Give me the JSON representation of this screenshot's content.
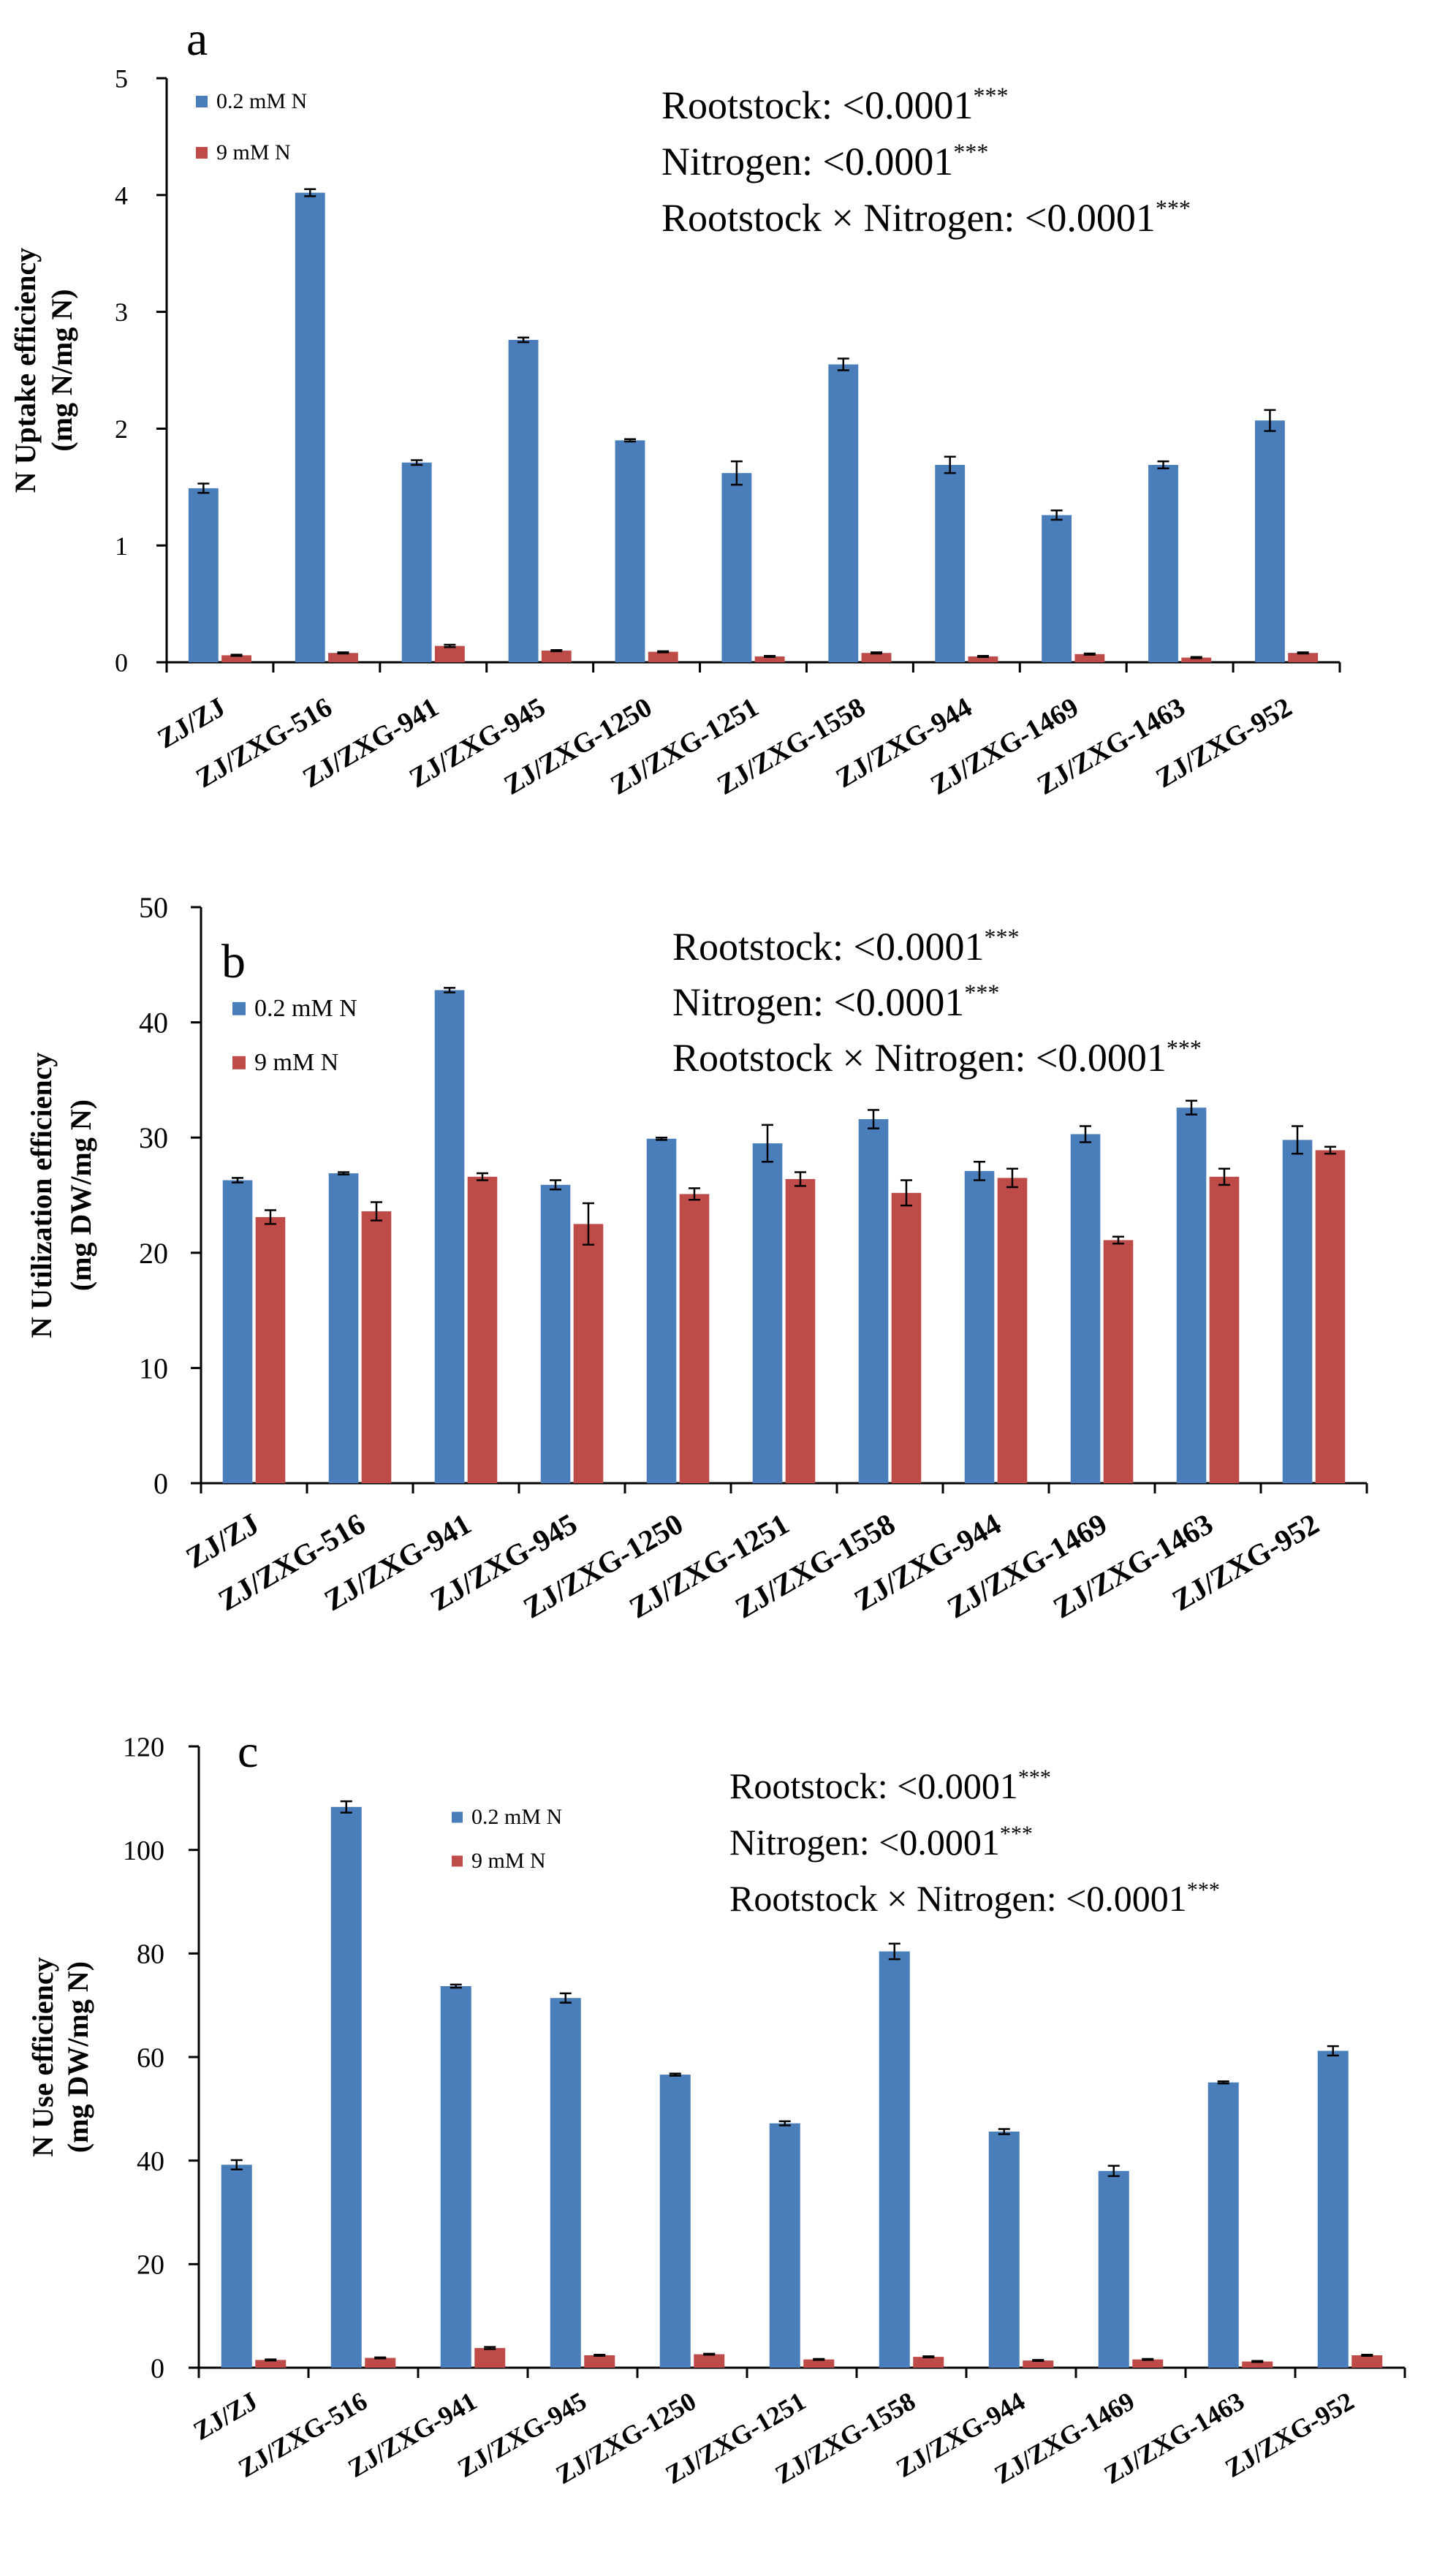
{
  "colors": {
    "series1": "#4A7EBB",
    "series2": "#BE4B48",
    "axis": "#000000"
  },
  "chart_data": [
    {
      "type": "bar",
      "panel_label": "a",
      "ylabel_line1": "N Uptake efficiency",
      "ylabel_line2": "(mg N/mg N)",
      "ylim": [
        0,
        5
      ],
      "yticks": [
        0,
        1,
        2,
        3,
        4,
        5
      ],
      "categories": [
        "ZJ/ZJ",
        "ZJ/ZXG-516",
        "ZJ/ZXG-941",
        "ZJ/ZXG-945",
        "ZJ/ZXG-1250",
        "ZJ/ZXG-1251",
        "ZJ/ZXG-1558",
        "ZJ/ZXG-944",
        "ZJ/ZXG-1469",
        "ZJ/ZXG-1463",
        "ZJ/ZXG-952"
      ],
      "series": [
        {
          "name": "0.2 mM N",
          "values": [
            1.49,
            4.02,
            1.71,
            2.76,
            1.9,
            1.62,
            2.55,
            1.69,
            1.26,
            1.69,
            2.07
          ],
          "errors": [
            0.04,
            0.03,
            0.02,
            0.02,
            0.01,
            0.1,
            0.05,
            0.07,
            0.04,
            0.03,
            0.09
          ]
        },
        {
          "name": "9 mM N",
          "values": [
            0.06,
            0.08,
            0.14,
            0.1,
            0.09,
            0.05,
            0.08,
            0.05,
            0.07,
            0.04,
            0.08
          ],
          "errors": [
            0.005,
            0.005,
            0.01,
            0.005,
            0.005,
            0.005,
            0.005,
            0.005,
            0.005,
            0.005,
            0.005
          ]
        }
      ],
      "annotations": [
        {
          "label": "Rootstock:  <0.0001",
          "sig": "***"
        },
        {
          "label": "Nitrogen: <0.0001",
          "sig": "***"
        },
        {
          "label": "Rootstock × Nitrogen: <0.0001",
          "sig": "***"
        }
      ]
    },
    {
      "type": "bar",
      "panel_label": "b",
      "ylabel_line1": "N Utilization efficiency",
      "ylabel_line2": "(mg DW/mg N)",
      "ylim": [
        0,
        50
      ],
      "yticks": [
        0,
        10,
        20,
        30,
        40,
        50
      ],
      "categories": [
        "ZJ/ZJ",
        "ZJ/ZXG-516",
        "ZJ/ZXG-941",
        "ZJ/ZXG-945",
        "ZJ/ZXG-1250",
        "ZJ/ZXG-1251",
        "ZJ/ZXG-1558",
        "ZJ/ZXG-944",
        "ZJ/ZXG-1469",
        "ZJ/ZXG-1463",
        "ZJ/ZXG-952"
      ],
      "series": [
        {
          "name": "0.2 mM N",
          "values": [
            26.3,
            26.9,
            42.8,
            25.9,
            29.9,
            29.5,
            31.6,
            27.1,
            30.3,
            32.6,
            29.8
          ],
          "errors": [
            0.2,
            0.1,
            0.2,
            0.4,
            0.1,
            1.6,
            0.8,
            0.8,
            0.7,
            0.6,
            1.2
          ]
        },
        {
          "name": "9 mM N",
          "values": [
            23.1,
            23.6,
            26.6,
            22.5,
            25.1,
            26.4,
            25.2,
            26.5,
            21.1,
            26.6,
            28.9
          ],
          "errors": [
            0.6,
            0.8,
            0.3,
            1.8,
            0.5,
            0.6,
            1.1,
            0.8,
            0.3,
            0.7,
            0.3
          ]
        }
      ],
      "annotations": [
        {
          "label": "Rootstock:  <0.0001",
          "sig": "***"
        },
        {
          "label": "Nitrogen: <0.0001",
          "sig": "***"
        },
        {
          "label": "Rootstock × Nitrogen: <0.0001",
          "sig": "***"
        }
      ]
    },
    {
      "type": "bar",
      "panel_label": "c",
      "ylabel_line1": "N Use efficiency",
      "ylabel_line2": "(mg DW/mg N)",
      "ylim": [
        0,
        120
      ],
      "yticks": [
        0,
        20,
        40,
        60,
        80,
        100,
        120
      ],
      "categories": [
        "ZJ/ZJ",
        "ZJ/ZXG-516",
        "ZJ/ZXG-941",
        "ZJ/ZXG-945",
        "ZJ/ZXG-1250",
        "ZJ/ZXG-1251",
        "ZJ/ZXG-1558",
        "ZJ/ZXG-944",
        "ZJ/ZXG-1469",
        "ZJ/ZXG-1463",
        "ZJ/ZXG-952"
      ],
      "series": [
        {
          "name": "0.2 mM N",
          "values": [
            39.2,
            108.3,
            73.7,
            71.4,
            56.6,
            47.2,
            80.4,
            45.6,
            38.0,
            55.1,
            61.2
          ],
          "errors": [
            0.9,
            1.1,
            0.3,
            0.9,
            0.2,
            0.4,
            1.5,
            0.5,
            1.0,
            0.2,
            0.9
          ]
        },
        {
          "name": "9 mM N",
          "values": [
            1.5,
            1.9,
            3.8,
            2.4,
            2.6,
            1.6,
            2.1,
            1.4,
            1.6,
            1.2,
            2.4
          ],
          "errors": [
            0.1,
            0.1,
            0.2,
            0.1,
            0.1,
            0.1,
            0.1,
            0.1,
            0.1,
            0.1,
            0.1
          ]
        }
      ],
      "annotations": [
        {
          "label": "Rootstock:  <0.0001",
          "sig": "***"
        },
        {
          "label": "Nitrogen: <0.0001",
          "sig": "***"
        },
        {
          "label": "Rootstock × Nitrogen: <0.0001",
          "sig": "***"
        }
      ]
    }
  ]
}
